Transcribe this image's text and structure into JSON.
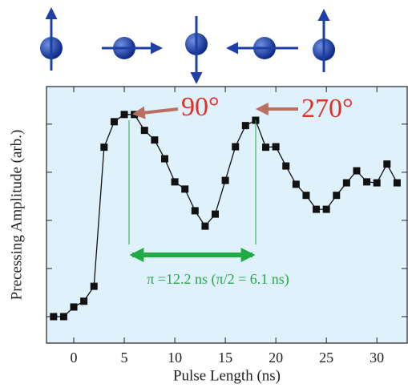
{
  "chart_data": {
    "type": "line",
    "x": [
      -2,
      -1,
      0,
      1,
      2,
      3,
      4,
      5,
      6,
      7,
      8,
      9,
      10,
      11,
      12,
      13,
      14,
      15,
      16,
      17,
      18,
      19,
      20,
      21,
      22,
      23,
      24,
      25,
      26,
      27,
      28,
      29,
      30,
      31,
      32
    ],
    "values": [
      0,
      0,
      0.2,
      0.32,
      0.63,
      3.52,
      4.05,
      4.2,
      4.2,
      3.87,
      3.67,
      3.28,
      2.8,
      2.65,
      2.2,
      1.88,
      2.13,
      2.83,
      3.53,
      3.97,
      4.08,
      3.52,
      3.53,
      3.13,
      2.75,
      2.52,
      2.23,
      2.23,
      2.52,
      2.78,
      3.03,
      2.8,
      2.78,
      3.17,
      2.78
    ],
    "color": "#111111",
    "xlabel": "Pulse Length (ns)",
    "ylabel": "Precessing Amplitude (arb.)",
    "xlim": [
      -2.7,
      33
    ],
    "xticks": [
      0,
      5,
      10,
      15,
      20,
      25,
      30
    ],
    "ylim": [
      -0.55,
      4.78
    ],
    "yticks": [
      0,
      1,
      2,
      3,
      4
    ],
    "annotations": [
      "90°",
      "270°",
      "π =12.2 ns (π/2 = 6.1 ns)"
    ]
  }
}
